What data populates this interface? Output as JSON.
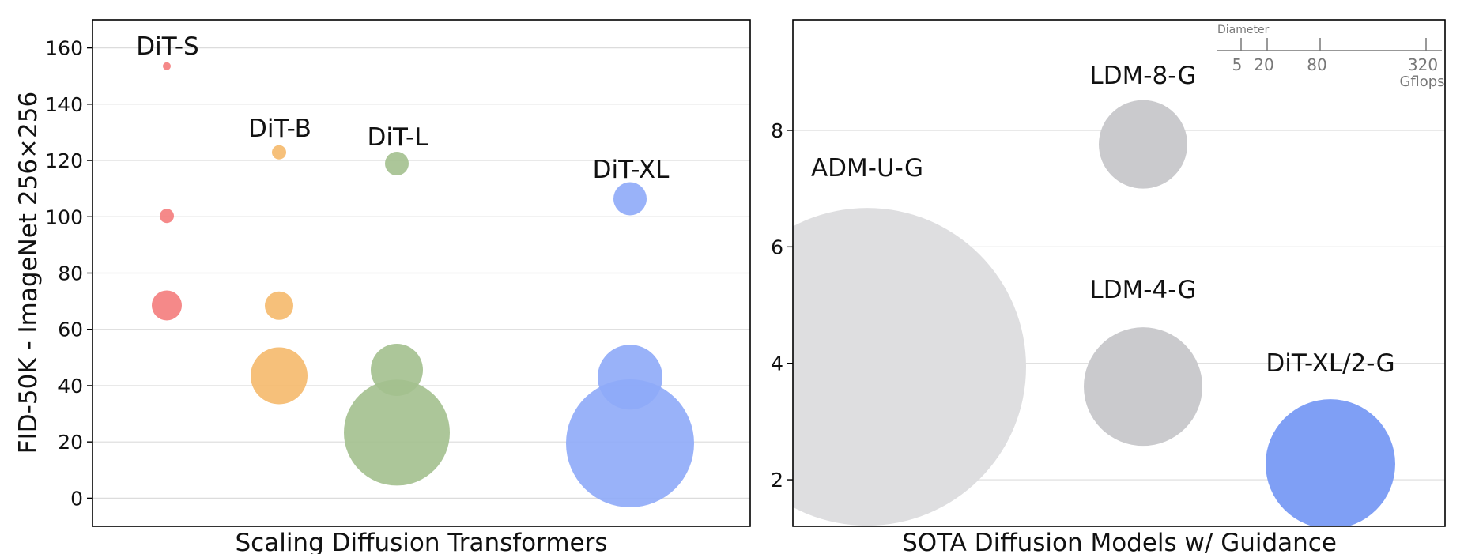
{
  "chart_data": [
    {
      "type": "scatter",
      "subtype": "bubble",
      "xlabel": "Scaling Diffusion Transformers",
      "ylabel": "FID-50K - ImageNet 256×256",
      "ylim": [
        -10,
        170
      ],
      "yticks": [
        0,
        20,
        40,
        60,
        80,
        100,
        120,
        140,
        160
      ],
      "grid": "horizontal",
      "categories": [
        "DiT-S",
        "DiT-B",
        "DiT-L",
        "DiT-XL"
      ],
      "series": [
        {
          "name": "DiT-S",
          "color": "#f47c7c",
          "points": [
            {
              "fid": 153.5
            },
            {
              "fid": 100.3
            },
            {
              "fid": 68.5
            }
          ]
        },
        {
          "name": "DiT-B",
          "color": "#f5b96b",
          "points": [
            {
              "fid": 122.9
            },
            {
              "fid": 68.4
            },
            {
              "fid": 43.5
            }
          ]
        },
        {
          "name": "DiT-L",
          "color": "#a3c08e",
          "points": [
            {
              "fid": 118.9
            },
            {
              "fid": 45.6
            },
            {
              "fid": 23.3
            }
          ]
        },
        {
          "name": "DiT-XL",
          "color": "#8eaaf8",
          "points": [
            {
              "fid": 106.4
            },
            {
              "fid": 43.0
            },
            {
              "fid": 19.5
            }
          ]
        }
      ]
    },
    {
      "type": "scatter",
      "subtype": "bubble",
      "xlabel": "SOTA Diffusion Models w/ Guidance",
      "ylabel": "",
      "ylim": [
        1.2,
        9.9
      ],
      "yticks": [
        2,
        4,
        6,
        8
      ],
      "grid": "horizontal",
      "points": [
        {
          "name": "ADM-U-G",
          "fid": 3.94,
          "color": "#dedee0"
        },
        {
          "name": "LDM-8-G",
          "fid": 7.76,
          "color": "#cacacd"
        },
        {
          "name": "LDM-4-G",
          "fid": 3.6,
          "color": "#cacacd"
        },
        {
          "name": "DiT-XL/2-G",
          "fid": 2.27,
          "color": "#7f9ff5"
        }
      ],
      "size_legend": {
        "title": "Diameter",
        "values": [
          "5",
          "20",
          "80",
          "320"
        ],
        "unit": "Gflops"
      }
    }
  ]
}
